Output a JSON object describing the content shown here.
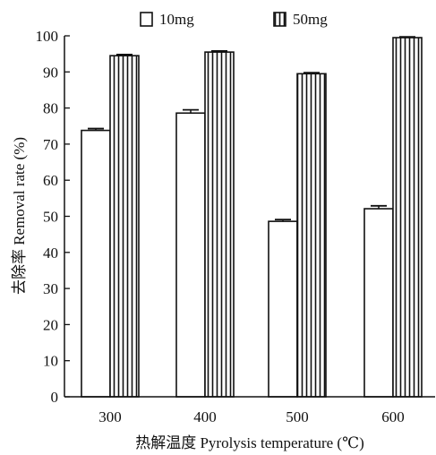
{
  "chart_data": {
    "type": "bar",
    "categories": [
      "300",
      "400",
      "500",
      "600"
    ],
    "series": [
      {
        "name": "10mg",
        "values": [
          73.8,
          78.6,
          48.6,
          52.1
        ],
        "errors": [
          0.5,
          0.9,
          0.5,
          0.8
        ],
        "pattern": "blank",
        "fill_color": "#ffffff"
      },
      {
        "name": "50mg",
        "values": [
          94.5,
          95.5,
          89.5,
          99.5
        ],
        "errors": [
          0.3,
          0.3,
          0.3,
          0.2
        ],
        "pattern": "vertical-stripes",
        "fill_color": "#ffffff"
      }
    ],
    "xlabel": "热解温度 Pyrolysis temperature (℃)",
    "ylabel": "去除率 Removal rate (%)",
    "ylim": [
      0,
      100
    ],
    "yticks": [
      "0",
      "10",
      "20",
      "30",
      "40",
      "50",
      "60",
      "70",
      "80",
      "90",
      "100"
    ],
    "grid": false,
    "legend_position": "top"
  },
  "colors": {
    "stroke": "#111111",
    "background": "#ffffff"
  }
}
